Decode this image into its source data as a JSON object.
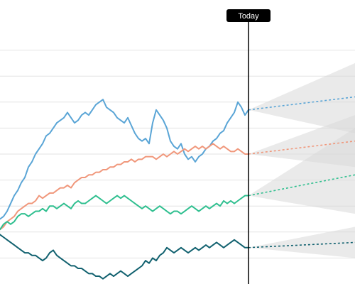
{
  "chart_data": {
    "type": "line",
    "title": "",
    "xlabel": "",
    "ylabel": "",
    "x_range": [
      0,
      100
    ],
    "today_x": 70,
    "ylim": [
      0,
      100
    ],
    "grid": true,
    "grid_y": [
      10,
      20,
      30,
      40,
      50,
      60,
      70,
      80,
      90
    ],
    "annotation": {
      "label": "Today"
    },
    "series": [
      {
        "color": "#5aa5d6",
        "points": [
          [
            0,
            25
          ],
          [
            1,
            26
          ],
          [
            2,
            28
          ],
          [
            3,
            31
          ],
          [
            4,
            34
          ],
          [
            5,
            36
          ],
          [
            6,
            39
          ],
          [
            7,
            41
          ],
          [
            8,
            45
          ],
          [
            9,
            47
          ],
          [
            10,
            50
          ],
          [
            11,
            52
          ],
          [
            12,
            54
          ],
          [
            13,
            57
          ],
          [
            14,
            58
          ],
          [
            15,
            60
          ],
          [
            16,
            62
          ],
          [
            17,
            63
          ],
          [
            18,
            64
          ],
          [
            19,
            66
          ],
          [
            20,
            64
          ],
          [
            21,
            62
          ],
          [
            22,
            63
          ],
          [
            23,
            65
          ],
          [
            24,
            66
          ],
          [
            25,
            65
          ],
          [
            26,
            67
          ],
          [
            27,
            69
          ],
          [
            28,
            70
          ],
          [
            29,
            71
          ],
          [
            30,
            68
          ],
          [
            31,
            67
          ],
          [
            32,
            66
          ],
          [
            33,
            64
          ],
          [
            34,
            63
          ],
          [
            35,
            62
          ],
          [
            36,
            64
          ],
          [
            37,
            61
          ],
          [
            38,
            58
          ],
          [
            39,
            56
          ],
          [
            40,
            55
          ],
          [
            41,
            56
          ],
          [
            42,
            54
          ],
          [
            43,
            62
          ],
          [
            44,
            67
          ],
          [
            45,
            65
          ],
          [
            46,
            63
          ],
          [
            47,
            60
          ],
          [
            48,
            55
          ],
          [
            49,
            53
          ],
          [
            50,
            52
          ],
          [
            51,
            54
          ],
          [
            52,
            50
          ],
          [
            53,
            48
          ],
          [
            54,
            49
          ],
          [
            55,
            47
          ],
          [
            56,
            49
          ],
          [
            57,
            50
          ],
          [
            58,
            52
          ],
          [
            59,
            53
          ],
          [
            60,
            55
          ],
          [
            61,
            56
          ],
          [
            62,
            58
          ],
          [
            63,
            59
          ],
          [
            64,
            62
          ],
          [
            65,
            64
          ],
          [
            66,
            66
          ],
          [
            67,
            70
          ],
          [
            68,
            68
          ],
          [
            69,
            65
          ],
          [
            70,
            67
          ]
        ],
        "forecast": [
          [
            70,
            67
          ],
          [
            100,
            72
          ]
        ],
        "band": [
          [
            70,
            67,
            67
          ],
          [
            100,
            58,
            85
          ]
        ]
      },
      {
        "color": "#f0977b",
        "points": [
          [
            0,
            21
          ],
          [
            1,
            22
          ],
          [
            2,
            24
          ],
          [
            3,
            25
          ],
          [
            4,
            26
          ],
          [
            5,
            28
          ],
          [
            6,
            29
          ],
          [
            7,
            30
          ],
          [
            8,
            31
          ],
          [
            9,
            31
          ],
          [
            10,
            32
          ],
          [
            11,
            34
          ],
          [
            12,
            33
          ],
          [
            13,
            34
          ],
          [
            14,
            35
          ],
          [
            15,
            35
          ],
          [
            16,
            36
          ],
          [
            17,
            37
          ],
          [
            18,
            37
          ],
          [
            19,
            38
          ],
          [
            20,
            37
          ],
          [
            21,
            39
          ],
          [
            22,
            40
          ],
          [
            23,
            41
          ],
          [
            24,
            41
          ],
          [
            25,
            42
          ],
          [
            26,
            42
          ],
          [
            27,
            43
          ],
          [
            28,
            43
          ],
          [
            29,
            44
          ],
          [
            30,
            44
          ],
          [
            31,
            45
          ],
          [
            32,
            45
          ],
          [
            33,
            46
          ],
          [
            34,
            46
          ],
          [
            35,
            47
          ],
          [
            36,
            47
          ],
          [
            37,
            48
          ],
          [
            38,
            47
          ],
          [
            39,
            48
          ],
          [
            40,
            48
          ],
          [
            41,
            49
          ],
          [
            42,
            49
          ],
          [
            43,
            49
          ],
          [
            44,
            48
          ],
          [
            45,
            49
          ],
          [
            46,
            50
          ],
          [
            47,
            49
          ],
          [
            48,
            50
          ],
          [
            49,
            51
          ],
          [
            50,
            50
          ],
          [
            51,
            51
          ],
          [
            52,
            52
          ],
          [
            53,
            51
          ],
          [
            54,
            52
          ],
          [
            55,
            53
          ],
          [
            56,
            52
          ],
          [
            57,
            53
          ],
          [
            58,
            52
          ],
          [
            59,
            53
          ],
          [
            60,
            54
          ],
          [
            61,
            53
          ],
          [
            62,
            52
          ],
          [
            63,
            53
          ],
          [
            64,
            52
          ],
          [
            65,
            51
          ],
          [
            66,
            51
          ],
          [
            67,
            52
          ],
          [
            68,
            51
          ],
          [
            69,
            50
          ],
          [
            70,
            50
          ]
        ],
        "forecast": [
          [
            70,
            50
          ],
          [
            100,
            55
          ]
        ],
        "band": [
          [
            70,
            50,
            50
          ],
          [
            100,
            45,
            65
          ]
        ]
      },
      {
        "color": "#2fbf8f",
        "points": [
          [
            0,
            21
          ],
          [
            1,
            23
          ],
          [
            2,
            24
          ],
          [
            3,
            23
          ],
          [
            4,
            24
          ],
          [
            5,
            26
          ],
          [
            6,
            27
          ],
          [
            7,
            27
          ],
          [
            8,
            26
          ],
          [
            9,
            27
          ],
          [
            10,
            28
          ],
          [
            11,
            28
          ],
          [
            12,
            29
          ],
          [
            13,
            28
          ],
          [
            14,
            30
          ],
          [
            15,
            30
          ],
          [
            16,
            29
          ],
          [
            17,
            30
          ],
          [
            18,
            31
          ],
          [
            19,
            30
          ],
          [
            20,
            29
          ],
          [
            21,
            31
          ],
          [
            22,
            32
          ],
          [
            23,
            31
          ],
          [
            24,
            31
          ],
          [
            25,
            32
          ],
          [
            26,
            33
          ],
          [
            27,
            34
          ],
          [
            28,
            33
          ],
          [
            29,
            32
          ],
          [
            30,
            31
          ],
          [
            31,
            32
          ],
          [
            32,
            33
          ],
          [
            33,
            34
          ],
          [
            34,
            33
          ],
          [
            35,
            34
          ],
          [
            36,
            33
          ],
          [
            37,
            32
          ],
          [
            38,
            31
          ],
          [
            39,
            30
          ],
          [
            40,
            29
          ],
          [
            41,
            30
          ],
          [
            42,
            29
          ],
          [
            43,
            28
          ],
          [
            44,
            29
          ],
          [
            45,
            30
          ],
          [
            46,
            29
          ],
          [
            47,
            28
          ],
          [
            48,
            27
          ],
          [
            49,
            28
          ],
          [
            50,
            28
          ],
          [
            51,
            27
          ],
          [
            52,
            28
          ],
          [
            53,
            29
          ],
          [
            54,
            30
          ],
          [
            55,
            29
          ],
          [
            56,
            28
          ],
          [
            57,
            29
          ],
          [
            58,
            30
          ],
          [
            59,
            29
          ],
          [
            60,
            30
          ],
          [
            61,
            31
          ],
          [
            62,
            30
          ],
          [
            63,
            32
          ],
          [
            64,
            31
          ],
          [
            65,
            32
          ],
          [
            66,
            31
          ],
          [
            67,
            32
          ],
          [
            68,
            33
          ],
          [
            69,
            34
          ],
          [
            70,
            34
          ]
        ],
        "forecast": [
          [
            70,
            34
          ],
          [
            100,
            42
          ]
        ],
        "band": [
          [
            70,
            34,
            34
          ],
          [
            100,
            27,
            60
          ]
        ]
      },
      {
        "color": "#11616f",
        "points": [
          [
            0,
            19
          ],
          [
            1,
            18
          ],
          [
            2,
            17
          ],
          [
            3,
            16
          ],
          [
            4,
            15
          ],
          [
            5,
            14
          ],
          [
            6,
            13
          ],
          [
            7,
            12
          ],
          [
            8,
            12
          ],
          [
            9,
            11
          ],
          [
            10,
            11
          ],
          [
            11,
            10
          ],
          [
            12,
            9
          ],
          [
            13,
            10
          ],
          [
            14,
            12
          ],
          [
            15,
            13
          ],
          [
            16,
            11
          ],
          [
            17,
            10
          ],
          [
            18,
            9
          ],
          [
            19,
            8
          ],
          [
            20,
            7
          ],
          [
            21,
            7
          ],
          [
            22,
            6
          ],
          [
            23,
            6
          ],
          [
            24,
            5
          ],
          [
            25,
            4
          ],
          [
            26,
            4
          ],
          [
            27,
            3
          ],
          [
            28,
            3
          ],
          [
            29,
            2
          ],
          [
            30,
            3
          ],
          [
            31,
            4
          ],
          [
            32,
            3
          ],
          [
            33,
            4
          ],
          [
            34,
            5
          ],
          [
            35,
            4
          ],
          [
            36,
            3
          ],
          [
            37,
            4
          ],
          [
            38,
            5
          ],
          [
            39,
            6
          ],
          [
            40,
            7
          ],
          [
            41,
            9
          ],
          [
            42,
            8
          ],
          [
            43,
            10
          ],
          [
            44,
            9
          ],
          [
            45,
            11
          ],
          [
            46,
            12
          ],
          [
            47,
            14
          ],
          [
            48,
            13
          ],
          [
            49,
            12
          ],
          [
            50,
            13
          ],
          [
            51,
            14
          ],
          [
            52,
            13
          ],
          [
            53,
            12
          ],
          [
            54,
            13
          ],
          [
            55,
            14
          ],
          [
            56,
            13
          ],
          [
            57,
            14
          ],
          [
            58,
            15
          ],
          [
            59,
            14
          ],
          [
            60,
            15
          ],
          [
            61,
            16
          ],
          [
            62,
            15
          ],
          [
            63,
            14
          ],
          [
            64,
            15
          ],
          [
            65,
            16
          ],
          [
            66,
            17
          ],
          [
            67,
            16
          ],
          [
            68,
            15
          ],
          [
            69,
            14
          ],
          [
            70,
            14
          ]
        ],
        "forecast": [
          [
            70,
            14
          ],
          [
            100,
            16
          ]
        ],
        "band": [
          [
            70,
            14,
            14
          ],
          [
            100,
            10,
            22
          ]
        ]
      }
    ]
  }
}
